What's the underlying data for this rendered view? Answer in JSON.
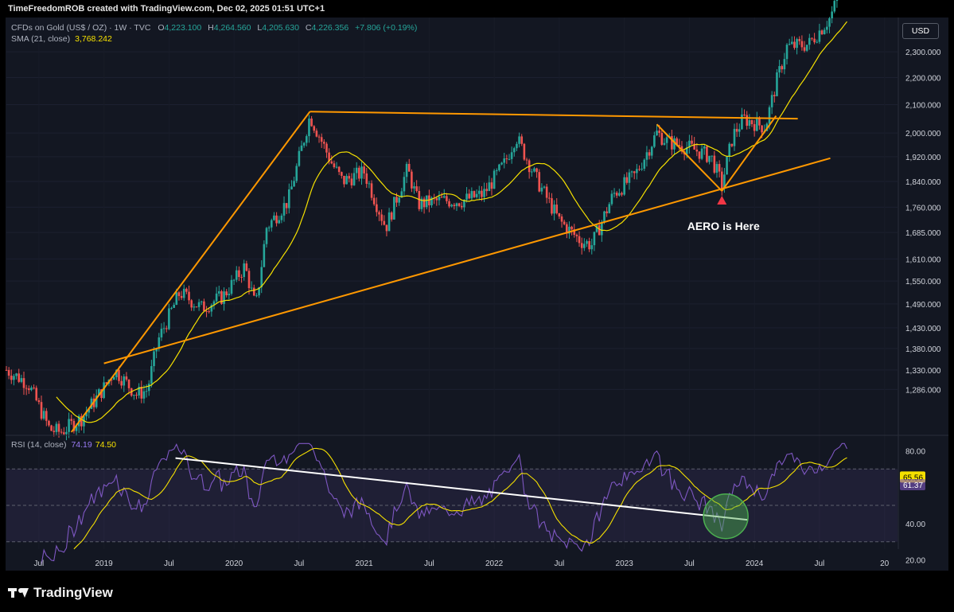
{
  "header": {
    "caption": "TimeFreedomROB created with TradingView.com, Dec 02, 2025 01:51 UTC+1"
  },
  "legend": {
    "symbol": "CFDs on Gold (US$ / OZ) · 1W · TVC",
    "o_key": "O",
    "o_val": "4,223.100",
    "h_key": "H",
    "h_val": "4,264.560",
    "l_key": "L",
    "l_val": "4,205.630",
    "c_key": "C",
    "c_val": "4,226.356",
    "change": "+7.806 (+0.19%)",
    "sma_label": "SMA (21, close)",
    "sma_val": "3,768.242",
    "rsi_label": "RSI (14, close)",
    "rsi_val": "74.19",
    "rsi_ma_val": "74.50"
  },
  "currency": "USD",
  "logo": "TradingView",
  "annotation": {
    "text": "AERO is Here"
  },
  "colors": {
    "background": "#131722",
    "up": "#26a69a",
    "down": "#ef5350",
    "sma": "#f5e000",
    "trendline": "#ff9800",
    "rsi": "#7e57c2",
    "rsi_ma": "#f5e000",
    "rsi_line": "#ffffff",
    "highlight_circle": "#4caf50",
    "arrow": "#f23645"
  },
  "chart_data": [
    {
      "type": "candlestick",
      "title": "CFDs on Gold (US$ / OZ) · 1W · TVC",
      "y_ticks": [
        "1,286.000",
        "1,330.000",
        "1,380.000",
        "1,430.000",
        "1,490.000",
        "1,550.000",
        "1,610.000",
        "1,685.000",
        "1,760.000",
        "1,840.000",
        "1,920.000",
        "2,000.000",
        "2,100.000",
        "2,200.000",
        "2,300.000"
      ],
      "x_ticks": [
        "Jul",
        "2019",
        "Jul",
        "2020",
        "Jul",
        "2021",
        "Jul",
        "2022",
        "Jul",
        "2023",
        "Jul",
        "2024",
        "Jul",
        "20"
      ],
      "x_range": [
        "2018-04",
        "2025-02"
      ],
      "scale": "log",
      "price_path": [
        {
          "t": "2018-04",
          "p": 1330
        },
        {
          "t": "2018-06",
          "p": 1300
        },
        {
          "t": "2018-08",
          "p": 1200
        },
        {
          "t": "2018-09",
          "p": 1195
        },
        {
          "t": "2018-11",
          "p": 1225
        },
        {
          "t": "2019-01",
          "p": 1290
        },
        {
          "t": "2019-02",
          "p": 1330
        },
        {
          "t": "2019-04",
          "p": 1275
        },
        {
          "t": "2019-05",
          "p": 1285
        },
        {
          "t": "2019-06",
          "p": 1400
        },
        {
          "t": "2019-08",
          "p": 1520
        },
        {
          "t": "2019-10",
          "p": 1480
        },
        {
          "t": "2019-12",
          "p": 1510
        },
        {
          "t": "2020-02",
          "p": 1590
        },
        {
          "t": "2020-03",
          "p": 1480
        },
        {
          "t": "2020-04",
          "p": 1700
        },
        {
          "t": "2020-06",
          "p": 1780
        },
        {
          "t": "2020-08",
          "p": 2060
        },
        {
          "t": "2020-10",
          "p": 1900
        },
        {
          "t": "2020-11",
          "p": 1840
        },
        {
          "t": "2021-01",
          "p": 1870
        },
        {
          "t": "2021-03",
          "p": 1700
        },
        {
          "t": "2021-05",
          "p": 1880
        },
        {
          "t": "2021-06",
          "p": 1770
        },
        {
          "t": "2021-08",
          "p": 1780
        },
        {
          "t": "2021-10",
          "p": 1780
        },
        {
          "t": "2021-12",
          "p": 1800
        },
        {
          "t": "2022-02",
          "p": 1900
        },
        {
          "t": "2022-03",
          "p": 1990
        },
        {
          "t": "2022-05",
          "p": 1840
        },
        {
          "t": "2022-07",
          "p": 1720
        },
        {
          "t": "2022-09",
          "p": 1660
        },
        {
          "t": "2022-10",
          "p": 1650
        },
        {
          "t": "2022-12",
          "p": 1800
        },
        {
          "t": "2023-02",
          "p": 1860
        },
        {
          "t": "2023-04",
          "p": 2000
        },
        {
          "t": "2023-05",
          "p": 1970
        },
        {
          "t": "2023-07",
          "p": 1950
        },
        {
          "t": "2023-09",
          "p": 1920
        },
        {
          "t": "2023-10",
          "p": 1830
        },
        {
          "t": "2023-11",
          "p": 1990
        },
        {
          "t": "2023-12",
          "p": 2050
        },
        {
          "t": "2024-02",
          "p": 2020
        },
        {
          "t": "2024-03",
          "p": 2180
        },
        {
          "t": "2024-04",
          "p": 2320
        },
        {
          "t": "2024-06",
          "p": 2330
        },
        {
          "t": "2024-08",
          "p": 2440
        },
        {
          "t": "2024-10",
          "p": 2700
        }
      ],
      "sma_label": "SMA (21, close)",
      "trendlines_drawn": [
        "upper horizontal resistance",
        "rising support",
        "steep rising channel",
        "inner triangle"
      ]
    },
    {
      "type": "line",
      "title": "RSI (14, close)",
      "y_ticks": [
        "80.00",
        "40.00",
        "20.00"
      ],
      "levels": {
        "upper": 70,
        "middle": 50,
        "lower": 30
      },
      "current_labels": [
        "65.56",
        "61.37"
      ],
      "y_range": [
        15,
        85
      ]
    }
  ]
}
